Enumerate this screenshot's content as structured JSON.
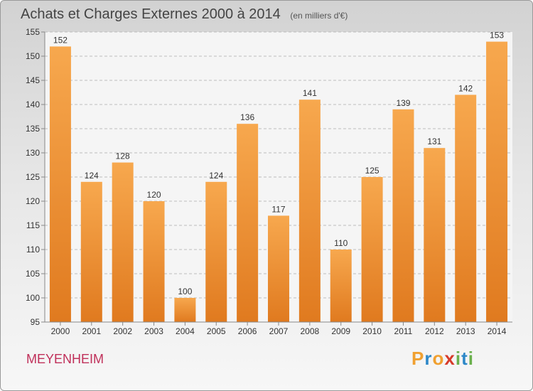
{
  "header": {
    "title": "Achats et Charges Externes 2000 à 2014",
    "unit": "(en milliers d'€)"
  },
  "footer": {
    "commune": "MEYENHEIM",
    "brand": {
      "letters": [
        "P",
        "r",
        "o",
        "x",
        "i",
        "t",
        "i"
      ],
      "colors": [
        "#f0a030",
        "#2e88c8",
        "#f0a030",
        "#d63a2a",
        "#6ab04c",
        "#2e88c8",
        "#6ab04c"
      ]
    }
  },
  "colors": {
    "bar_top": "#f7a84e",
    "bar_bottom": "#e07a1f",
    "grid": "#bdbdbd",
    "text": "#333333"
  },
  "chart_data": {
    "type": "bar",
    "title": "Achats et Charges Externes 2000 à 2014",
    "subtitle": "(en milliers d'€)",
    "categories": [
      "2000",
      "2001",
      "2002",
      "2003",
      "2004",
      "2005",
      "2006",
      "2007",
      "2008",
      "2009",
      "2010",
      "2011",
      "2012",
      "2013",
      "2014"
    ],
    "values": [
      152,
      124,
      128,
      120,
      100,
      124,
      136,
      117,
      141,
      110,
      125,
      139,
      131,
      142,
      153
    ],
    "ylim": [
      95,
      155
    ],
    "yticks": [
      95,
      100,
      105,
      110,
      115,
      120,
      125,
      130,
      135,
      140,
      145,
      150,
      155
    ],
    "grid": true,
    "legend": "none"
  }
}
